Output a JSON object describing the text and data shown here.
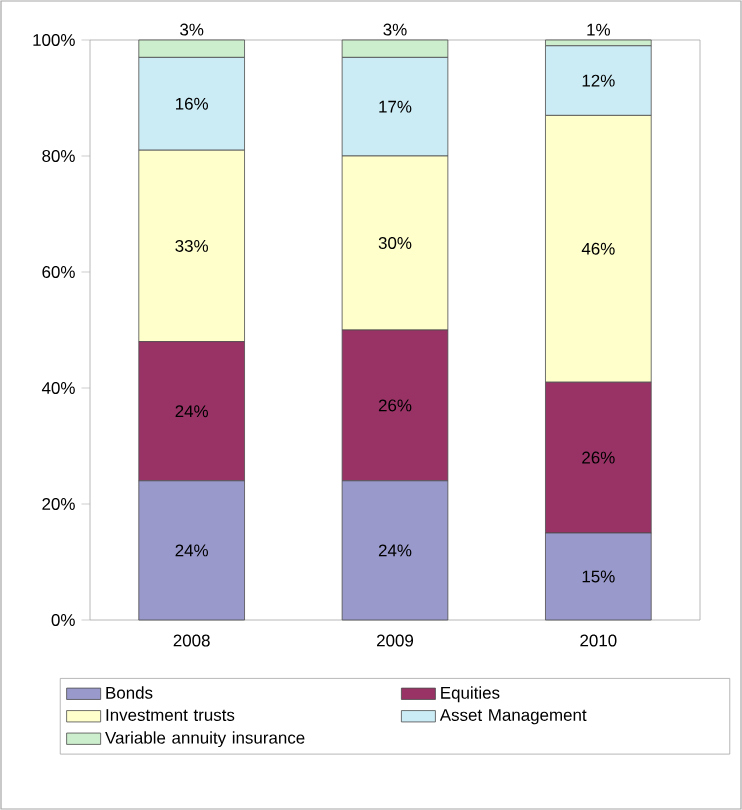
{
  "chart_data": {
    "type": "bar",
    "stacked": true,
    "categories": [
      "2008",
      "2009",
      "2010"
    ],
    "ylim": [
      0,
      100
    ],
    "yticks": [
      {
        "value": 0,
        "label": "0%"
      },
      {
        "value": 20,
        "label": "20%"
      },
      {
        "value": 40,
        "label": "40%"
      },
      {
        "value": 60,
        "label": "60%"
      },
      {
        "value": 80,
        "label": "80%"
      },
      {
        "value": 100,
        "label": "100%"
      }
    ],
    "legend": "bottom",
    "series": [
      {
        "name": "Bonds",
        "color": "#9999cc",
        "values": [
          24,
          24,
          15
        ],
        "value_labels": [
          "24%",
          "24%",
          "15%"
        ]
      },
      {
        "name": "Equities",
        "color": "#993366",
        "values": [
          24,
          26,
          26
        ],
        "value_labels": [
          "24%",
          "26%",
          "26%"
        ]
      },
      {
        "name": "Investment trusts",
        "color": "#ffffcc",
        "values": [
          33,
          30,
          46
        ],
        "value_labels": [
          "33%",
          "30%",
          "46%"
        ]
      },
      {
        "name": "Asset Management",
        "color": "#ccecf5",
        "values": [
          16,
          17,
          12
        ],
        "value_labels": [
          "16%",
          "17%",
          "12%"
        ]
      },
      {
        "name": "Variable annuity insurance",
        "color": "#cceecc",
        "values": [
          3,
          3,
          1
        ],
        "value_labels": [
          "3%",
          "3%",
          "1%"
        ]
      }
    ]
  }
}
